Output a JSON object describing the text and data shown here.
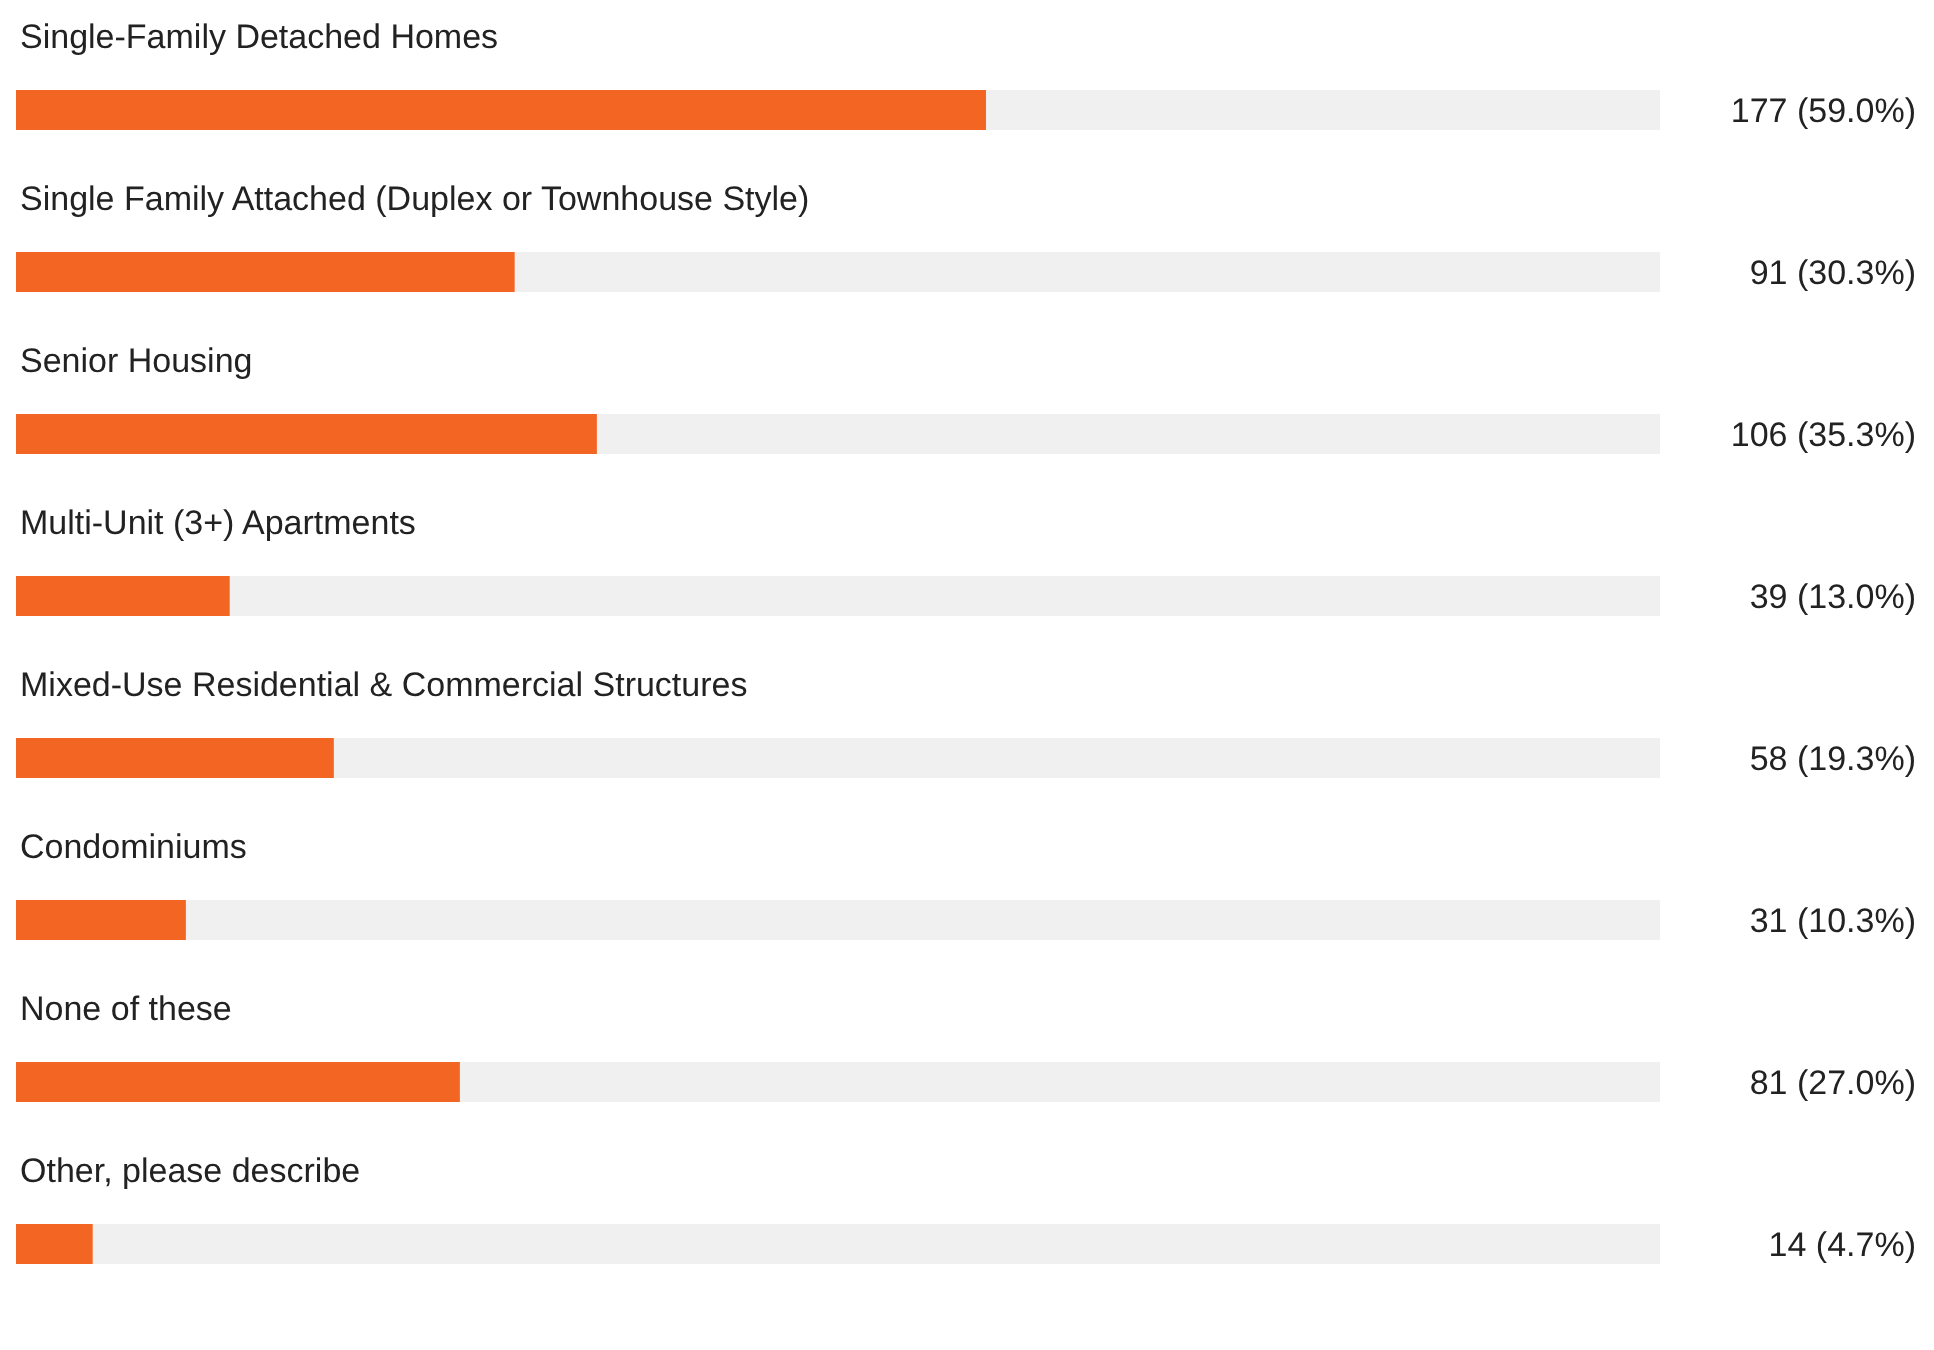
{
  "chart_data": {
    "type": "bar",
    "orientation": "horizontal",
    "categories": [
      "Single-Family Detached Homes",
      "Single Family Attached (Duplex or Townhouse Style)",
      "Senior Housing",
      "Multi-Unit (3+) Apartments",
      "Mixed-Use Residential & Commercial Structures",
      "Condominiums",
      "None of these",
      "Other, please describe"
    ],
    "values": [
      177,
      91,
      106,
      39,
      58,
      31,
      81,
      14
    ],
    "value_labels": [
      "177 (59.0%)",
      "91 (30.3%)",
      "106 (35.3%)",
      "39 (13.0%)",
      "58 (19.3%)",
      "31 (10.3%)",
      "81 (27.0%)",
      "14 (4.7%)"
    ],
    "color": "#f26522",
    "xlim": [
      0,
      300
    ]
  }
}
